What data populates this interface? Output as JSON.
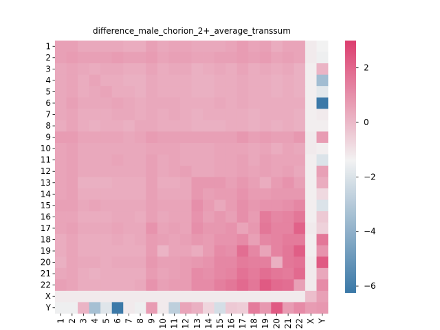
{
  "chart_data": {
    "type": "heatmap",
    "title": "difference_male_chorion_2+_average_transsum",
    "xlabel": "",
    "ylabel": "",
    "labels": [
      "1",
      "2",
      "3",
      "4",
      "5",
      "6",
      "7",
      "8",
      "9",
      "10",
      "11",
      "12",
      "13",
      "14",
      "15",
      "16",
      "17",
      "18",
      "19",
      "20",
      "21",
      "22",
      "X",
      "Y"
    ],
    "values": [
      [
        0.6,
        0.6,
        0.4,
        0.4,
        0.4,
        0.4,
        0.3,
        0.3,
        0.6,
        0.4,
        0.5,
        0.5,
        0.4,
        0.4,
        0.4,
        0.5,
        0.7,
        0.5,
        0.6,
        0.3,
        0.5,
        0.5,
        -1.2,
        -1.4
      ],
      [
        0.6,
        0.7,
        0.6,
        0.6,
        0.6,
        0.7,
        0.6,
        0.6,
        0.7,
        0.5,
        0.6,
        0.6,
        0.5,
        0.5,
        0.6,
        0.6,
        0.7,
        0.6,
        0.7,
        0.5,
        0.6,
        0.5,
        -1.2,
        -1.5
      ],
      [
        0.4,
        0.5,
        0.4,
        0.3,
        0.4,
        0.4,
        0.3,
        0.3,
        0.5,
        0.3,
        0.4,
        0.4,
        0.2,
        0.3,
        0.4,
        0.3,
        0.5,
        0.3,
        0.4,
        0.3,
        0.4,
        0.2,
        -1.3,
        0.1
      ],
      [
        0.4,
        0.5,
        0.3,
        0.5,
        0.3,
        0.3,
        0.2,
        0.2,
        0.4,
        0.3,
        0.3,
        0.3,
        0.2,
        0.2,
        0.3,
        0.3,
        0.4,
        0.3,
        0.3,
        0.2,
        0.3,
        0.2,
        -1.3,
        -3.5
      ],
      [
        0.4,
        0.5,
        0.3,
        0.4,
        0.5,
        0.3,
        0.3,
        0.2,
        0.4,
        0.3,
        0.3,
        0.3,
        0.2,
        0.2,
        0.3,
        0.3,
        0.4,
        0.3,
        0.3,
        0.2,
        0.3,
        0.2,
        -1.3,
        -1.8
      ],
      [
        0.4,
        0.6,
        0.4,
        0.4,
        0.4,
        0.5,
        0.4,
        0.3,
        0.4,
        0.4,
        0.4,
        0.3,
        0.3,
        0.3,
        0.4,
        0.3,
        0.4,
        0.3,
        0.3,
        0.3,
        0.3,
        0.3,
        -1.3,
        -6.2
      ],
      [
        0.4,
        0.5,
        0.3,
        0.3,
        0.3,
        0.4,
        0.4,
        0.3,
        0.4,
        0.3,
        0.4,
        0.3,
        0.2,
        0.3,
        0.3,
        0.3,
        0.3,
        0.2,
        0.3,
        0.3,
        0.3,
        0.2,
        -1.3,
        -1.2
      ],
      [
        0.3,
        0.5,
        0.3,
        0.2,
        0.3,
        0.3,
        0.2,
        0.4,
        0.4,
        0.3,
        0.3,
        0.3,
        0.2,
        0.2,
        0.2,
        0.3,
        0.3,
        0.2,
        0.3,
        0.2,
        0.3,
        0.2,
        -1.3,
        -1.3
      ],
      [
        0.7,
        0.7,
        0.5,
        0.5,
        0.5,
        0.5,
        0.4,
        0.5,
        0.7,
        0.6,
        0.6,
        0.6,
        0.6,
        0.6,
        0.6,
        0.6,
        0.8,
        0.6,
        0.7,
        0.6,
        0.6,
        0.8,
        -1.2,
        0.7
      ],
      [
        0.5,
        0.6,
        0.4,
        0.4,
        0.4,
        0.4,
        0.4,
        0.4,
        0.5,
        0.5,
        0.5,
        0.4,
        0.4,
        0.4,
        0.5,
        0.5,
        0.5,
        0.4,
        0.5,
        0.3,
        0.5,
        0.4,
        -1.2,
        -1.3
      ],
      [
        0.5,
        0.6,
        0.4,
        0.4,
        0.4,
        0.5,
        0.4,
        0.4,
        0.6,
        0.4,
        0.5,
        0.4,
        0.4,
        0.4,
        0.5,
        0.5,
        0.6,
        0.4,
        0.6,
        0.5,
        0.5,
        0.5,
        -1.3,
        -2.0
      ],
      [
        0.5,
        0.6,
        0.4,
        0.4,
        0.4,
        0.4,
        0.4,
        0.4,
        0.6,
        0.4,
        0.5,
        0.6,
        0.4,
        0.4,
        0.5,
        0.5,
        0.6,
        0.5,
        0.6,
        0.5,
        0.6,
        0.4,
        -1.3,
        0.6
      ],
      [
        0.5,
        0.6,
        0.2,
        0.2,
        0.2,
        0.3,
        0.3,
        0.3,
        0.6,
        0.3,
        0.3,
        0.4,
        0.8,
        0.8,
        0.8,
        0.6,
        0.8,
        0.6,
        0.3,
        0.7,
        0.9,
        0.6,
        -1.3,
        0.3
      ],
      [
        0.5,
        0.6,
        0.3,
        0.3,
        0.3,
        0.3,
        0.3,
        0.3,
        0.6,
        0.4,
        0.4,
        0.4,
        0.8,
        0.6,
        0.7,
        0.7,
        0.9,
        0.7,
        0.7,
        0.8,
        0.8,
        0.8,
        -1.3,
        -0.8
      ],
      [
        0.6,
        0.6,
        0.4,
        0.5,
        0.4,
        0.4,
        0.4,
        0.4,
        0.6,
        0.5,
        0.5,
        0.5,
        1.0,
        0.7,
        0.4,
        0.7,
        1.0,
        0.8,
        0.9,
        0.9,
        1.0,
        1.2,
        -1.3,
        -2.0
      ],
      [
        0.5,
        0.5,
        0.3,
        0.3,
        0.3,
        0.4,
        0.4,
        0.3,
        0.6,
        0.4,
        0.5,
        0.5,
        0.9,
        0.6,
        0.8,
        0.6,
        1.0,
        0.7,
        1.5,
        1.2,
        1.3,
        1.6,
        -1.3,
        -0.4
      ],
      [
        0.5,
        0.6,
        0.4,
        0.4,
        0.4,
        0.5,
        0.4,
        0.4,
        0.9,
        0.5,
        0.6,
        0.5,
        1.0,
        0.8,
        0.8,
        0.9,
        0.5,
        0.8,
        1.6,
        1.3,
        1.3,
        2.1,
        -1.2,
        -0.6
      ],
      [
        0.3,
        0.5,
        0.3,
        0.3,
        0.3,
        0.4,
        0.3,
        0.4,
        0.7,
        0.6,
        0.5,
        0.6,
        0.8,
        0.7,
        0.9,
        0.9,
        1.1,
        0.6,
        1.2,
        1.3,
        1.5,
        1.5,
        -1.3,
        1.6
      ],
      [
        0.3,
        0.5,
        0.3,
        0.3,
        0.3,
        0.3,
        0.3,
        0.3,
        0.7,
        0.1,
        0.5,
        0.5,
        0.3,
        0.7,
        1.1,
        1.0,
        1.8,
        1.2,
        0.5,
        1.3,
        1.6,
        2.2,
        -1.3,
        0.9
      ],
      [
        0.2,
        0.5,
        0.4,
        0.4,
        0.3,
        0.4,
        0.4,
        0.4,
        0.8,
        0.6,
        0.6,
        0.7,
        0.8,
        0.9,
        1.2,
        1.2,
        1.5,
        1.4,
        1.4,
        0.2,
        1.6,
        1.7,
        -1.2,
        2.3
      ],
      [
        0.4,
        0.5,
        0.3,
        0.2,
        0.3,
        0.3,
        0.3,
        0.3,
        0.7,
        0.5,
        0.6,
        0.7,
        1.1,
        1.0,
        1.2,
        1.3,
        1.7,
        1.5,
        1.8,
        1.6,
        1.5,
        1.9,
        -1.2,
        0.4
      ],
      [
        0.6,
        0.5,
        0.3,
        0.3,
        0.3,
        0.3,
        0.3,
        0.4,
        0.9,
        0.6,
        0.7,
        0.7,
        1.1,
        1.1,
        1.4,
        1.6,
        1.9,
        1.6,
        2.3,
        1.9,
        1.8,
        0.6,
        -1.2,
        1.1
      ],
      [
        -1.2,
        -1.2,
        -1.2,
        -1.2,
        -1.2,
        -1.2,
        -1.2,
        -1.2,
        -1.2,
        -1.2,
        -1.2,
        -1.2,
        -1.2,
        -1.2,
        -1.2,
        -1.2,
        -1.2,
        -1.2,
        -1.2,
        -1.2,
        -1.2,
        -1.2,
        -0.1,
        0.6
      ],
      [
        -1.5,
        -1.5,
        0.1,
        -3.4,
        -1.9,
        -6.2,
        -1.2,
        -1.5,
        0.7,
        -1.2,
        -2.8,
        0.5,
        0.2,
        -0.7,
        -2.2,
        -0.4,
        -0.5,
        1.5,
        0.8,
        2.3,
        0.7,
        1.1,
        0.7,
        0.8
      ]
    ],
    "colorbar": {
      "ticks": [
        2,
        0,
        -2,
        -4,
        -6
      ],
      "min": -6.25,
      "max": 3.0,
      "colormap": "diverging blue-white-pink"
    },
    "grid": false,
    "legend": "colorbar at right"
  },
  "colors": {
    "negative": "#3a78a7",
    "center": "#f2f2f2",
    "positive": "#dc3d6e"
  }
}
